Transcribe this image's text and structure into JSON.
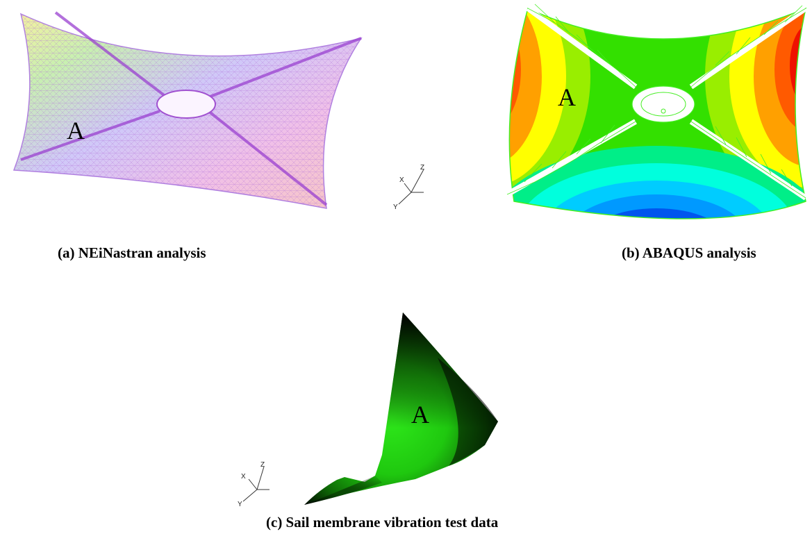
{
  "panels": [
    {
      "id": "a",
      "caption": "(a) NEiNastran analysis",
      "marker": "A"
    },
    {
      "id": "b",
      "caption": "(b) ABAQUS analysis",
      "marker": "A"
    },
    {
      "id": "c",
      "caption": "(c) Sail membrane vibration test data",
      "marker": "A"
    }
  ],
  "axes_triad": {
    "x": "X",
    "y": "Y",
    "z": "Z"
  },
  "colors": {
    "nastran_mesh": "#c070e0",
    "abaqus_wire": "#44ee22",
    "abaqus_base": "#33e000",
    "test_green": "#22dd11",
    "test_dark": "#000000"
  }
}
